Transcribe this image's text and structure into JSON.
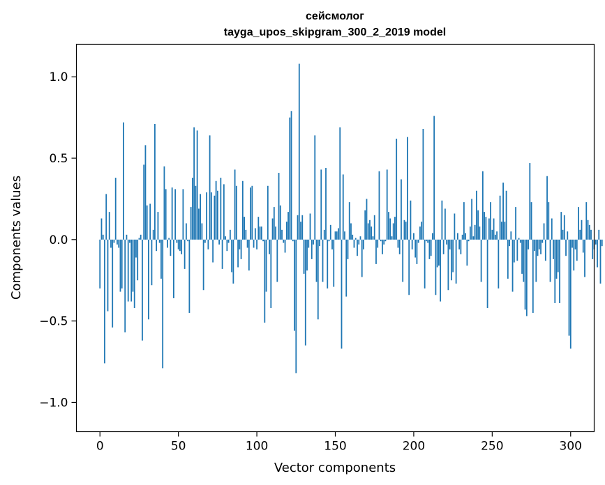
{
  "chart_data": {
    "type": "bar",
    "title": "сейсмолог",
    "subtitle": "tayga_upos_skipgram_300_2_2019 model",
    "xlabel": "Vector components",
    "ylabel": "Components values",
    "xlim": [
      -15,
      315
    ],
    "ylim": [
      -1.18,
      1.2
    ],
    "xticks": [
      0,
      50,
      100,
      150,
      200,
      250,
      300
    ],
    "xtick_labels": [
      "0",
      "50",
      "100",
      "150",
      "200",
      "250",
      "300"
    ],
    "yticks": [
      -1.0,
      -0.5,
      0.0,
      0.5,
      1.0
    ],
    "ytick_labels": [
      "−1.0",
      "−0.5",
      "0.0",
      "0.5",
      "1.0"
    ],
    "grid": false,
    "bar_color": "#1f77b4",
    "values": [
      -0.3,
      0.13,
      0.03,
      -0.76,
      0.28,
      -0.44,
      0.17,
      -0.05,
      -0.54,
      -0.02,
      0.38,
      -0.03,
      -0.05,
      -0.32,
      -0.3,
      0.72,
      -0.57,
      0.03,
      -0.38,
      -0.02,
      -0.38,
      -0.32,
      -0.42,
      -0.11,
      -0.25,
      0.01,
      0.03,
      -0.62,
      0.46,
      0.58,
      0.21,
      -0.49,
      0.22,
      -0.28,
      0.06,
      0.71,
      -0.07,
      0.17,
      -0.02,
      -0.24,
      -0.79,
      0.45,
      0.31,
      -0.05,
      0.01,
      -0.1,
      0.32,
      -0.36,
      0.31,
      -0.02,
      -0.06,
      -0.07,
      -0.09,
      0.31,
      -0.18,
      0.1,
      -0.01,
      -0.45,
      0.2,
      0.38,
      0.69,
      0.33,
      0.67,
      0.19,
      0.28,
      0.1,
      -0.31,
      -0.02,
      0.29,
      -0.06,
      0.64,
      0.29,
      -0.14,
      0.27,
      0.36,
      0.3,
      -0.03,
      0.38,
      -0.18,
      0.34,
      0.02,
      -0.07,
      -0.02,
      0.06,
      -0.2,
      -0.27,
      0.43,
      0.33,
      -0.17,
      -0.06,
      -0.12,
      0.36,
      0.14,
      0.06,
      -0.05,
      -0.19,
      0.32,
      0.33,
      -0.05,
      0.07,
      -0.06,
      0.14,
      0.08,
      0.08,
      -0.01,
      -0.51,
      -0.32,
      0.33,
      -0.09,
      -0.42,
      0.13,
      0.2,
      0.08,
      -0.26,
      0.41,
      0.21,
      0.06,
      -0.02,
      -0.08,
      0.11,
      0.17,
      0.75,
      0.79,
      -0.01,
      -0.56,
      -0.82,
      0.15,
      1.08,
      0.11,
      0.15,
      -0.21,
      -0.65,
      -0.19,
      -0.05,
      0.16,
      -0.12,
      -0.03,
      0.64,
      -0.26,
      -0.49,
      -0.04,
      0.43,
      -0.26,
      0.06,
      0.44,
      -0.3,
      -0.01,
      0.09,
      -0.06,
      -0.29,
      0.05,
      0.05,
      0.07,
      0.69,
      -0.67,
      0.4,
      0.05,
      -0.35,
      -0.12,
      0.23,
      0.1,
      0.03,
      -0.05,
      0.01,
      -0.1,
      -0.03,
      0.02,
      -0.23,
      -0.06,
      0.18,
      0.25,
      0.1,
      0.12,
      0.08,
      0.02,
      0.15,
      -0.15,
      -0.05,
      0.42,
      -0.01,
      -0.09,
      -0.03,
      -0.01,
      0.43,
      0.17,
      0.13,
      0.02,
      0.1,
      0.14,
      0.62,
      -0.05,
      -0.09,
      0.37,
      -0.26,
      0.12,
      0.11,
      0.63,
      -0.34,
      0.24,
      -0.06,
      0.04,
      -0.11,
      -0.15,
      -0.02,
      0.08,
      0.11,
      0.68,
      -0.3,
      -0.01,
      -0.02,
      -0.12,
      -0.1,
      0.04,
      0.76,
      -0.34,
      -0.17,
      -0.16,
      -0.38,
      0.24,
      -0.09,
      0.19,
      -0.03,
      -0.31,
      -0.06,
      -0.25,
      -0.2,
      0.16,
      -0.27,
      0.04,
      -0.06,
      -0.09,
      0.03,
      0.23,
      0.04,
      -0.16,
      -0.01,
      0.08,
      0.25,
      0.02,
      0.09,
      0.3,
      0.18,
      0.08,
      -0.26,
      0.42,
      0.17,
      0.14,
      -0.42,
      0.13,
      0.23,
      0.06,
      0.13,
      0.03,
      0.05,
      -0.3,
      0.27,
      0.11,
      0.35,
      0.11,
      0.3,
      -0.24,
      -0.04,
      0.05,
      -0.32,
      -0.14,
      0.2,
      -0.13,
      0.01,
      -0.02,
      -0.21,
      -0.26,
      -0.43,
      -0.47,
      -0.06,
      0.47,
      0.23,
      -0.45,
      -0.07,
      -0.26,
      -0.1,
      -0.06,
      -0.09,
      -0.02,
      0.1,
      -0.13,
      0.39,
      0.23,
      -0.26,
      0.13,
      -0.12,
      -0.39,
      -0.24,
      -0.2,
      -0.39,
      0.17,
      0.06,
      0.15,
      -0.1,
      0.05,
      -0.59,
      -0.67,
      -0.05,
      -0.19,
      -0.06,
      -0.13,
      0.2,
      0.06,
      0.12,
      -0.08,
      -0.23,
      0.23,
      0.12,
      0.09,
      0.06,
      -0.12,
      -0.06,
      -0.03,
      -0.17,
      0.06,
      -0.27,
      -0.04
    ]
  }
}
